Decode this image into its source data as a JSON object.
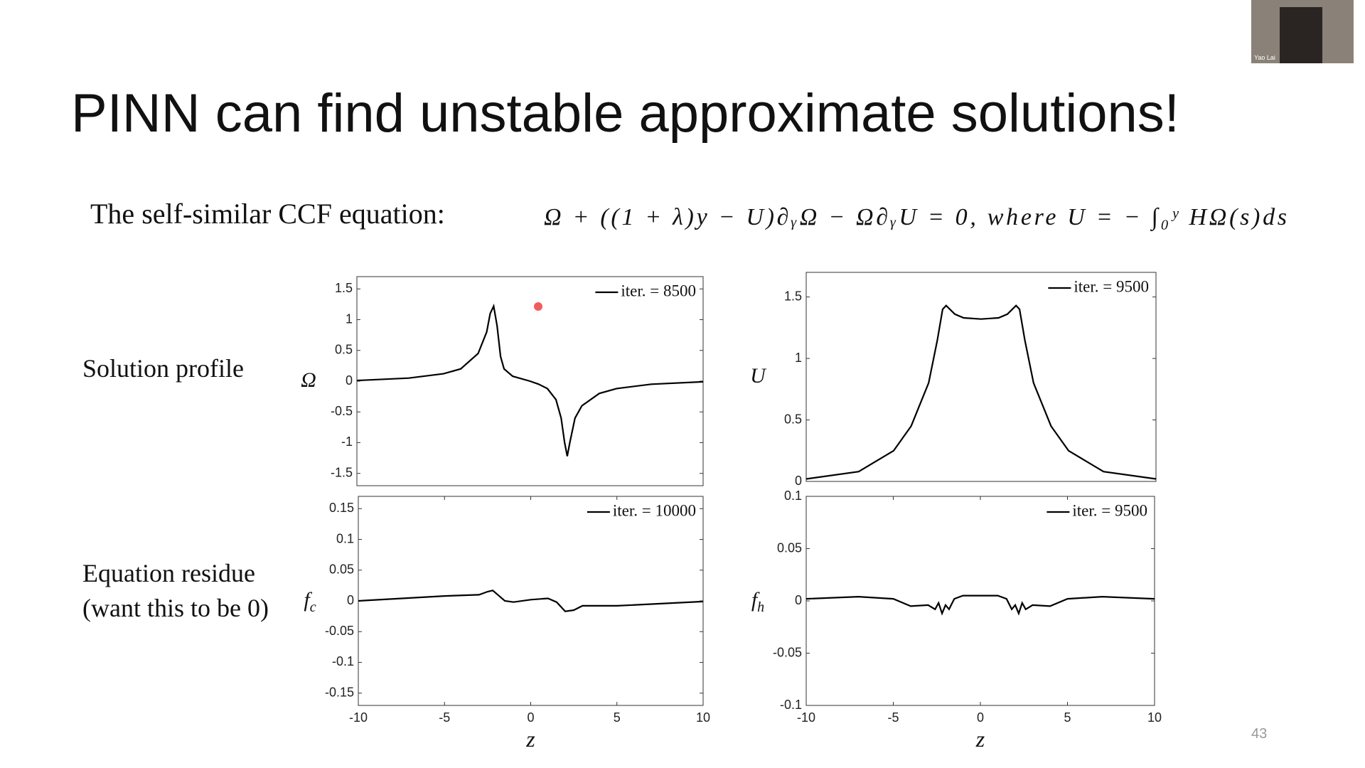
{
  "slide": {
    "title": "PINN can find unstable approximate solutions!",
    "equation_label": "The self-similar CCF equation:",
    "equation": "Ω + ((1 + λ)y − U)∂ᵧΩ − Ω∂ᵧU = 0,    where    U = − ∫₀ʸ HΩ(s)ds",
    "row_labels": [
      "Solution profile",
      "Equation residue",
      "(want this to be 0)"
    ],
    "page_number": "43",
    "webcam_name": "Yao Lai"
  },
  "chart_data": [
    {
      "type": "line",
      "ylabel": "Ω",
      "x": [
        -10,
        -7,
        -5,
        -4,
        -3,
        -2.5,
        -2.3,
        -2.1,
        -1.9,
        -1.7,
        -1.5,
        -1,
        0,
        0.5,
        1,
        1.5,
        1.8,
        2,
        2.15,
        2.3,
        2.6,
        3,
        4,
        5,
        7,
        10
      ],
      "series": [
        {
          "name": "iter. = 8500",
          "color": "#000000",
          "values": [
            0.01,
            0.05,
            0.12,
            0.2,
            0.45,
            0.8,
            1.1,
            1.22,
            0.9,
            0.4,
            0.2,
            0.08,
            0.0,
            -0.05,
            -0.12,
            -0.3,
            -0.6,
            -1.0,
            -1.22,
            -1.0,
            -0.6,
            -0.4,
            -0.2,
            -0.12,
            -0.05,
            -0.01
          ]
        }
      ],
      "xlim": [
        -10,
        10
      ],
      "ylim": [
        -1.7,
        1.7
      ],
      "yticks": [
        -1.5,
        -1,
        -0.5,
        0,
        0.5,
        1,
        1.5
      ]
    },
    {
      "type": "line",
      "ylabel": "U",
      "x": [
        -10,
        -7,
        -5,
        -4,
        -3,
        -2.5,
        -2.2,
        -2,
        -1.5,
        -1,
        0,
        1,
        1.5,
        2,
        2.2,
        2.5,
        3,
        4,
        5,
        7,
        10
      ],
      "series": [
        {
          "name": "iter. = 9500",
          "color": "#000000",
          "values": [
            0.02,
            0.08,
            0.25,
            0.45,
            0.8,
            1.15,
            1.4,
            1.43,
            1.36,
            1.33,
            1.32,
            1.33,
            1.36,
            1.43,
            1.4,
            1.15,
            0.8,
            0.45,
            0.25,
            0.08,
            0.02
          ]
        }
      ],
      "xlim": [
        -10,
        10
      ],
      "ylim": [
        0,
        1.7
      ],
      "yticks": [
        0,
        0.5,
        1,
        1.5
      ]
    },
    {
      "type": "line",
      "ylabel": "f",
      "ylabel_sub": "c",
      "xlabel": "z",
      "x": [
        -10,
        -5,
        -3,
        -2.5,
        -2.2,
        -1.5,
        -1,
        0,
        1,
        1.5,
        2,
        2.5,
        3,
        5,
        10
      ],
      "series": [
        {
          "name": "iter. = 10000",
          "color": "#000000",
          "values": [
            0,
            0.008,
            0.01,
            0.015,
            0.017,
            0.0,
            -0.002,
            0.002,
            0.004,
            -0.002,
            -0.017,
            -0.015,
            -0.008,
            -0.008,
            -0.001
          ]
        }
      ],
      "xlim": [
        -10,
        10
      ],
      "ylim": [
        -0.17,
        0.17
      ],
      "xticks": [
        -10,
        -5,
        0,
        5,
        10
      ],
      "yticks": [
        -0.15,
        -0.1,
        -0.05,
        0,
        0.05,
        0.1,
        0.15
      ]
    },
    {
      "type": "line",
      "ylabel": "f",
      "ylabel_sub": "h",
      "xlabel": "z",
      "x": [
        -10,
        -7,
        -5,
        -4,
        -3,
        -2.6,
        -2.4,
        -2.2,
        -2,
        -1.8,
        -1.5,
        -1,
        0,
        1,
        1.5,
        1.8,
        2,
        2.2,
        2.4,
        2.6,
        3,
        4,
        5,
        7,
        10
      ],
      "series": [
        {
          "name": "iter. = 9500",
          "color": "#000000",
          "values": [
            0.002,
            0.004,
            0.002,
            -0.005,
            -0.004,
            -0.008,
            -0.002,
            -0.012,
            -0.004,
            -0.008,
            0.002,
            0.005,
            0.005,
            0.005,
            0.002,
            -0.008,
            -0.004,
            -0.012,
            -0.002,
            -0.008,
            -0.004,
            -0.005,
            0.002,
            0.004,
            0.002
          ]
        }
      ],
      "xlim": [
        -10,
        10
      ],
      "ylim": [
        -0.1,
        0.1
      ],
      "xticks": [
        -10,
        -5,
        0,
        5,
        10
      ],
      "yticks": [
        -0.1,
        -0.05,
        0,
        0.05,
        0.1
      ]
    }
  ]
}
